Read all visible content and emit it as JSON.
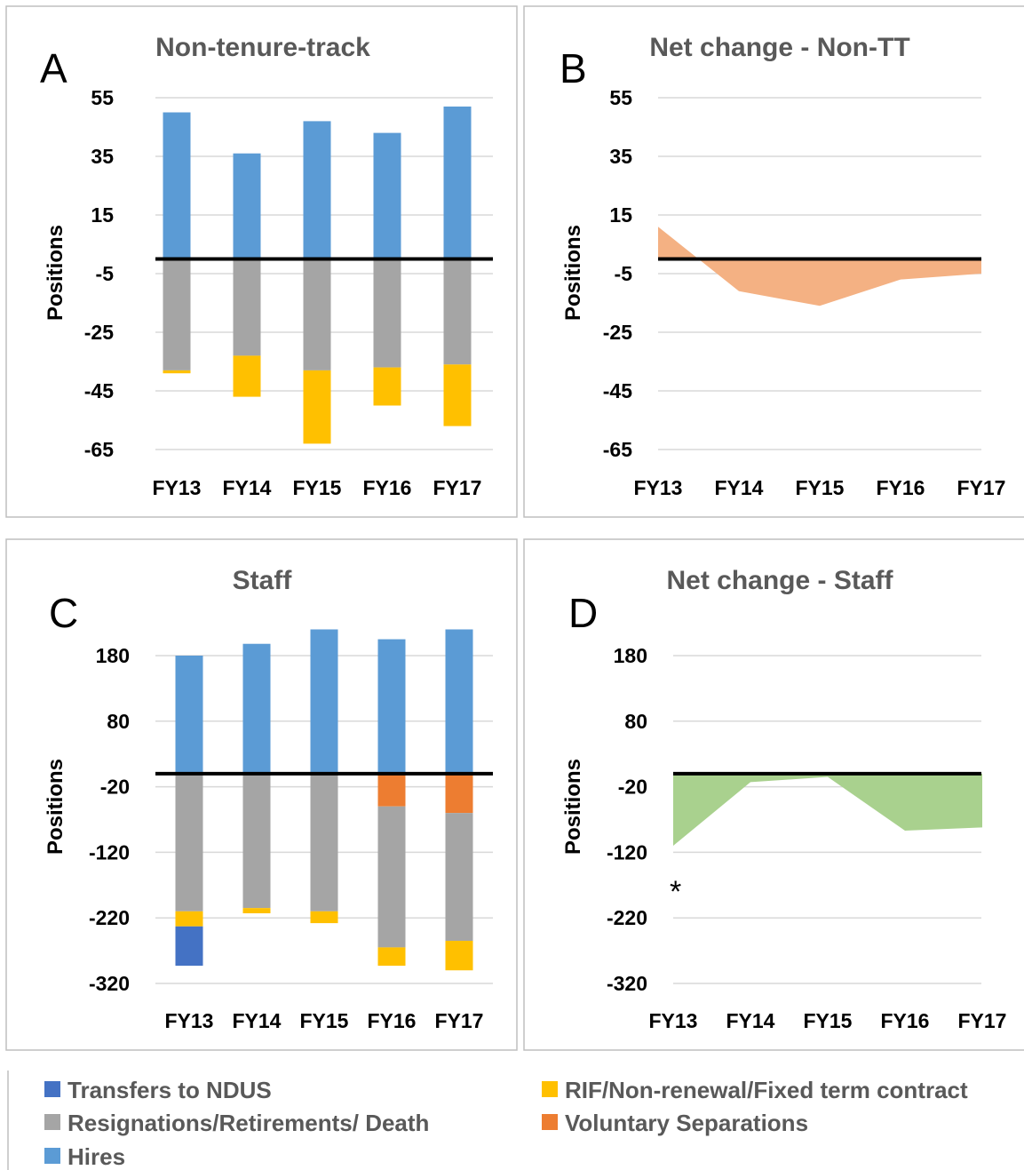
{
  "colors": {
    "transfers": "#4472C4",
    "resignations": "#A5A5A5",
    "hires": "#5B9BD5",
    "rif": "#FFC000",
    "voluntary": "#ED7D31",
    "net_nontt": "#F4B183",
    "net_staff": "#A9D18E",
    "grid": "#D9D9D9",
    "frame": "#BFBFBF"
  },
  "legend": [
    {
      "key": "transfers",
      "label": "Transfers to NDUS"
    },
    {
      "key": "rif",
      "label": "RIF/Non-renewal/Fixed term contract"
    },
    {
      "key": "resignations",
      "label": "Resignations/Retirements/ Death"
    },
    {
      "key": "voluntary",
      "label": "Voluntary Separations"
    },
    {
      "key": "hires",
      "label": "Hires"
    }
  ],
  "annotations": {
    "asterisk": "*"
  },
  "chart_data": [
    {
      "panel": "A",
      "type": "bar",
      "stacked": true,
      "title": "Non-tenure-track",
      "ylabel": "Positions",
      "categories": [
        "FY13",
        "FY14",
        "FY15",
        "FY16",
        "FY17"
      ],
      "ylim": [
        -65,
        55
      ],
      "yticks": [
        55,
        35,
        15,
        -5,
        -25,
        -45,
        -65
      ],
      "zero_line": 0,
      "series": [
        {
          "key": "hires",
          "values": [
            50,
            36,
            47,
            43,
            52
          ]
        },
        {
          "key": "resignations",
          "values": [
            -38,
            -33,
            -38,
            -37,
            -36
          ]
        },
        {
          "key": "rif",
          "values": [
            -1,
            -14,
            -25,
            -13,
            -21
          ]
        }
      ]
    },
    {
      "panel": "B",
      "type": "area",
      "title": "Net change - Non-TT",
      "ylabel": "Positions",
      "categories": [
        "FY13",
        "FY14",
        "FY15",
        "FY16",
        "FY17"
      ],
      "ylim": [
        -65,
        55
      ],
      "yticks": [
        55,
        35,
        15,
        -5,
        -25,
        -45,
        -65
      ],
      "zero_line": 0,
      "series": [
        {
          "key": "net_nontt",
          "values": [
            11,
            -11,
            -16,
            -7,
            -5
          ]
        }
      ]
    },
    {
      "panel": "C",
      "type": "bar",
      "stacked": true,
      "title": "Staff",
      "ylabel": "Positions",
      "categories": [
        "FY13",
        "FY14",
        "FY15",
        "FY16",
        "FY17"
      ],
      "ylim": [
        -320,
        180
      ],
      "yticks": [
        180,
        80,
        -20,
        -120,
        -220,
        -320
      ],
      "zero_line": 0,
      "series": [
        {
          "key": "hires",
          "values": [
            180,
            198,
            220,
            205,
            220
          ]
        },
        {
          "key": "voluntary",
          "values": [
            0,
            0,
            0,
            -50,
            -60
          ]
        },
        {
          "key": "resignations",
          "values": [
            -210,
            -205,
            -210,
            -215,
            -195
          ]
        },
        {
          "key": "rif",
          "values": [
            -23,
            -8,
            -18,
            -28,
            -45
          ]
        },
        {
          "key": "transfers",
          "values": [
            -60,
            0,
            0,
            0,
            0
          ]
        }
      ]
    },
    {
      "panel": "D",
      "type": "area",
      "title": "Net change - Staff",
      "ylabel": "Positions",
      "categories": [
        "FY13",
        "FY14",
        "FY15",
        "FY16",
        "FY17"
      ],
      "ylim": [
        -320,
        180
      ],
      "yticks": [
        180,
        80,
        -20,
        -120,
        -220,
        -320
      ],
      "zero_line": 0,
      "series": [
        {
          "key": "net_staff",
          "values": [
            -110,
            -13,
            -5,
            -87,
            -82
          ]
        }
      ]
    }
  ]
}
